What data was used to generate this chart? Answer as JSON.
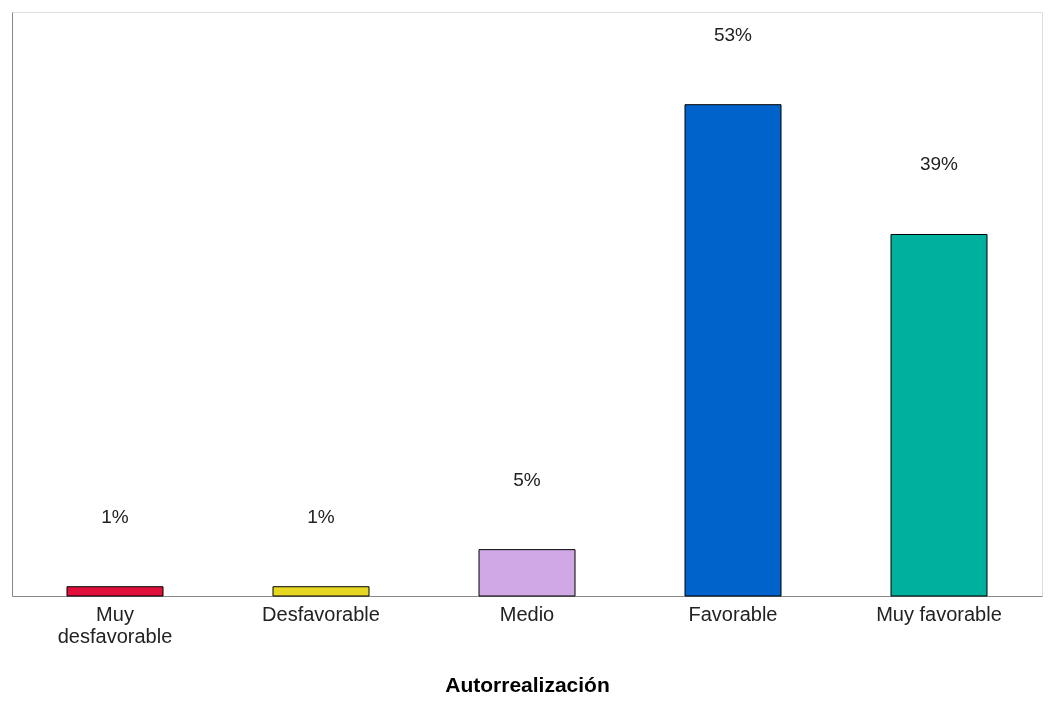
{
  "chart_data": {
    "type": "bar",
    "xlabel": "Autorrealización",
    "categories": [
      "Muy desfavorable",
      "Desfavorable",
      "Medio",
      "Favorable",
      "Muy favorable"
    ],
    "values": [
      1,
      1,
      5,
      53,
      39
    ],
    "colors": [
      "#e0103a",
      "#e6d820",
      "#d0a8e6",
      "#0063cc",
      "#00b09e"
    ],
    "value_labels": [
      "1%",
      "1%",
      "5%",
      "53%",
      "39%"
    ],
    "ylim": [
      0,
      63
    ],
    "tick_labels": "x",
    "grid": false
  }
}
